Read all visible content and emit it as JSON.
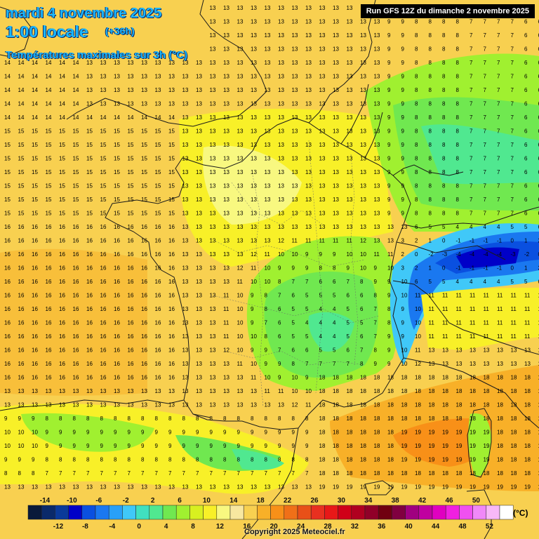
{
  "header": {
    "date": "mardi 4 novembre 2025",
    "time": "1:00 locale",
    "offset": "(+36h)",
    "parameter": "Températures maximales sur 3h (°C)"
  },
  "run_label": "Run GFS 12Z du dimanche 2 novembre 2025",
  "legend": {
    "unit": "(°C)",
    "upper_labels": [
      "-14",
      "-10",
      "-6",
      "-2",
      "2",
      "6",
      "10",
      "14",
      "18",
      "22",
      "26",
      "30",
      "34",
      "38",
      "42",
      "46",
      "50"
    ],
    "lower_labels": [
      "-12",
      "-8",
      "-4",
      "0",
      "4",
      "8",
      "12",
      "16",
      "20",
      "24",
      "28",
      "32",
      "36",
      "40",
      "44",
      "48",
      "52"
    ],
    "colors": [
      "#0a1a3a",
      "#0a2a6a",
      "#0a3a9a",
      "#0000c8",
      "#0a50e0",
      "#1a78f0",
      "#28a0f8",
      "#40c8f8",
      "#40e0c0",
      "#50e890",
      "#70e850",
      "#a0f030",
      "#d8f020",
      "#f8f028",
      "#f8f880",
      "#f8e8a0",
      "#f8d050",
      "#f8b028",
      "#f89018",
      "#f07018",
      "#e85018",
      "#e83020",
      "#e81818",
      "#d00018",
      "#b00020",
      "#900028",
      "#700010",
      "#800040",
      "#a00080",
      "#c000a0",
      "#e000c0",
      "#f020e0",
      "#f050f0",
      "#f088f8",
      "#f8b8f8",
      "#ffffff"
    ]
  },
  "copyright": "Copyright 2025 Meteociel.fr",
  "map": {
    "type": "temperature field",
    "region": "France / Western Europe",
    "grid_value_spacing": "~19 px",
    "zones": [
      {
        "name": "Atlantic / west",
        "typical_value": 15
      },
      {
        "name": "Bay of Biscay",
        "typical_value": 16
      },
      {
        "name": "North Sea / Channel",
        "typical_value": 14
      },
      {
        "name": "Central France",
        "typical_value": 7
      },
      {
        "name": "Germany / Benelux",
        "typical_value": 9
      },
      {
        "name": "Alps",
        "typical_value": -3
      },
      {
        "name": "Mediterranean",
        "typical_value": 18
      },
      {
        "name": "Po valley",
        "typical_value": 11
      },
      {
        "name": "Spain north",
        "typical_value": 8
      },
      {
        "name": "Iberia west coast",
        "typical_value": 14
      }
    ]
  }
}
